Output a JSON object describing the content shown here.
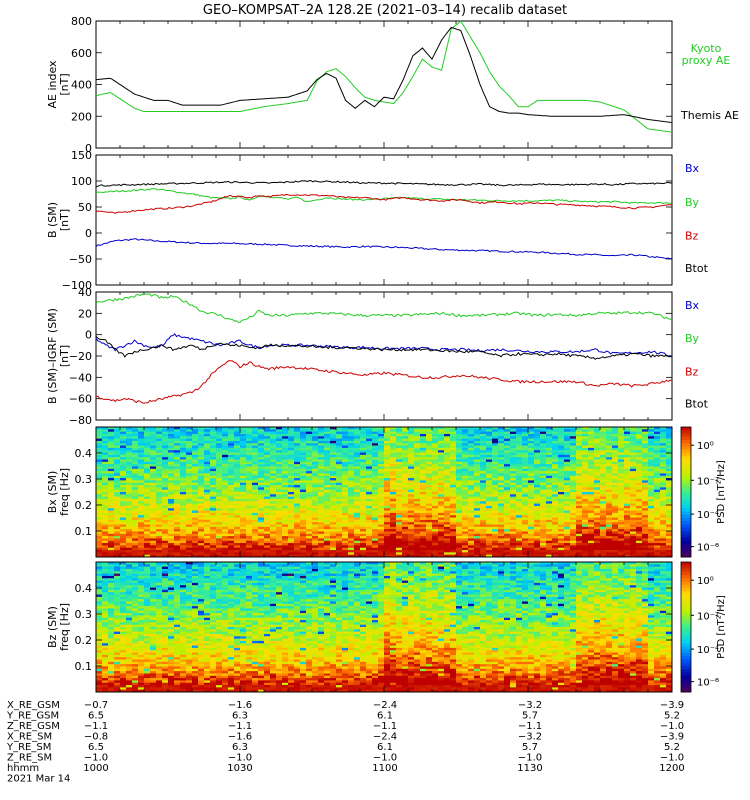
{
  "chart_data": [
    {
      "type": "line",
      "title": "GEO–KOMPSAT–2A 128.2E (2021–03–14) recalib dataset",
      "ylabel": "AE index\n[nT]",
      "ylim": [
        0,
        800
      ],
      "yticks": [
        0,
        200,
        400,
        600,
        800
      ],
      "xlim": [
        0,
        120
      ],
      "series": [
        {
          "name": "Kyoto proxy AE",
          "color": "#22cc22",
          "x": [
            0,
            3,
            6,
            8,
            10,
            12,
            15,
            18,
            22,
            26,
            30,
            35,
            40,
            44,
            46,
            48,
            50,
            52,
            54,
            56,
            58,
            60,
            62,
            64,
            66,
            68,
            70,
            72,
            74,
            76,
            78,
            80,
            82,
            84,
            86,
            88,
            90,
            92,
            95,
            98,
            100,
            102,
            105,
            110,
            115,
            120
          ],
          "values": [
            330,
            350,
            290,
            250,
            230,
            230,
            230,
            230,
            230,
            230,
            230,
            260,
            280,
            300,
            420,
            480,
            500,
            450,
            380,
            320,
            300,
            290,
            280,
            350,
            450,
            560,
            510,
            490,
            750,
            800,
            700,
            600,
            480,
            390,
            330,
            260,
            260,
            300,
            300,
            300,
            300,
            300,
            290,
            240,
            120,
            100
          ]
        },
        {
          "name": "Themis AE",
          "color": "#000000",
          "x": [
            0,
            3,
            6,
            8,
            10,
            12,
            15,
            18,
            22,
            26,
            30,
            35,
            40,
            44,
            46,
            48,
            50,
            52,
            54,
            56,
            58,
            60,
            62,
            64,
            66,
            68,
            70,
            72,
            74,
            76,
            78,
            80,
            82,
            84,
            86,
            88,
            90,
            95,
            100,
            105,
            110,
            115,
            120
          ],
          "values": [
            430,
            440,
            380,
            340,
            320,
            300,
            300,
            270,
            270,
            270,
            300,
            310,
            320,
            360,
            430,
            470,
            440,
            300,
            250,
            300,
            260,
            320,
            310,
            430,
            580,
            630,
            560,
            680,
            760,
            740,
            580,
            400,
            260,
            230,
            220,
            220,
            210,
            200,
            200,
            200,
            210,
            180,
            160
          ]
        }
      ]
    },
    {
      "type": "line",
      "ylabel": "B (SM)\n[nT]",
      "ylim": [
        -100,
        150
      ],
      "yticks": [
        -100,
        -50,
        0,
        50,
        100,
        150
      ],
      "xlim": [
        0,
        120
      ],
      "series": [
        {
          "name": "Bx",
          "color": "#0000cc",
          "x": [
            0,
            4,
            8,
            12,
            16,
            20,
            24,
            28,
            32,
            36,
            40,
            44,
            48,
            52,
            56,
            60,
            64,
            68,
            72,
            76,
            80,
            84,
            88,
            92,
            96,
            100,
            104,
            108,
            112,
            116,
            120
          ],
          "values": [
            -25,
            -15,
            -12,
            -15,
            -17,
            -19,
            -20,
            -20,
            -21,
            -22,
            -24,
            -25,
            -26,
            -27,
            -26,
            -27,
            -28,
            -30,
            -32,
            -33,
            -34,
            -35,
            -36,
            -37,
            -39,
            -41,
            -42,
            -44,
            -42,
            -46,
            -50
          ]
        },
        {
          "name": "By",
          "color": "#22cc22",
          "x": [
            0,
            4,
            8,
            12,
            16,
            20,
            24,
            28,
            30,
            32,
            34,
            38,
            40,
            42,
            44,
            48,
            52,
            56,
            60,
            64,
            68,
            72,
            76,
            80,
            84,
            88,
            92,
            96,
            100,
            104,
            108,
            112,
            116,
            120
          ],
          "values": [
            78,
            80,
            82,
            85,
            80,
            75,
            68,
            66,
            70,
            62,
            72,
            68,
            65,
            68,
            60,
            68,
            65,
            64,
            66,
            68,
            66,
            65,
            64,
            63,
            62,
            62,
            62,
            63,
            61,
            60,
            60,
            58,
            58,
            58
          ]
        },
        {
          "name": "Bz",
          "color": "#cc0000",
          "x": [
            0,
            4,
            8,
            12,
            16,
            20,
            24,
            28,
            30,
            32,
            34,
            36,
            40,
            44,
            48,
            52,
            56,
            60,
            64,
            68,
            72,
            76,
            80,
            84,
            88,
            92,
            96,
            100,
            104,
            108,
            112,
            116,
            120
          ],
          "values": [
            43,
            38,
            43,
            46,
            48,
            52,
            60,
            72,
            70,
            68,
            72,
            70,
            74,
            73,
            72,
            68,
            68,
            64,
            68,
            64,
            62,
            64,
            58,
            60,
            56,
            58,
            55,
            54,
            52,
            50,
            48,
            50,
            55
          ]
        },
        {
          "name": "Btot",
          "color": "#000000",
          "x": [
            0,
            4,
            8,
            12,
            16,
            20,
            24,
            28,
            32,
            36,
            40,
            44,
            48,
            52,
            56,
            60,
            64,
            68,
            72,
            76,
            80,
            84,
            88,
            92,
            96,
            100,
            104,
            108,
            112,
            116,
            120
          ],
          "values": [
            91,
            92,
            93,
            94,
            95,
            96,
            97,
            98,
            97,
            96,
            98,
            100,
            99,
            98,
            96,
            96,
            95,
            94,
            93,
            93,
            94,
            92,
            92,
            94,
            93,
            93,
            94,
            93,
            95,
            95,
            96
          ]
        }
      ]
    },
    {
      "type": "line",
      "ylabel": "B (SM)–IGRF (SM)\n[nT]",
      "ylim": [
        -80,
        40
      ],
      "yticks": [
        -80,
        -60,
        -40,
        -20,
        0,
        20,
        40
      ],
      "xlim": [
        0,
        120
      ],
      "series": [
        {
          "name": "Bx",
          "color": "#0000cc",
          "x": [
            0,
            2,
            4,
            6,
            8,
            10,
            12,
            14,
            16,
            18,
            20,
            22,
            24,
            26,
            28,
            30,
            32,
            34,
            36,
            40,
            44,
            48,
            52,
            56,
            60,
            64,
            68,
            72,
            76,
            80,
            84,
            88,
            92,
            96,
            100,
            104,
            108,
            112,
            116,
            120
          ],
          "values": [
            -4,
            -10,
            -14,
            -10,
            -6,
            -10,
            -12,
            -10,
            0,
            -2,
            -4,
            -6,
            -8,
            -10,
            -8,
            -6,
            -10,
            -12,
            -10,
            -10,
            -10,
            -11,
            -12,
            -12,
            -13,
            -13,
            -13,
            -14,
            -14,
            -15,
            -14,
            -15,
            -16,
            -16,
            -16,
            -14,
            -18,
            -17,
            -16,
            -20
          ]
        },
        {
          "name": "By",
          "color": "#22cc22",
          "x": [
            0,
            2,
            4,
            6,
            8,
            10,
            12,
            14,
            16,
            18,
            20,
            22,
            24,
            26,
            28,
            30,
            32,
            34,
            36,
            40,
            44,
            48,
            52,
            56,
            60,
            64,
            68,
            72,
            76,
            80,
            84,
            88,
            92,
            96,
            100,
            104,
            108,
            112,
            116,
            120
          ],
          "values": [
            30,
            32,
            33,
            34,
            36,
            38,
            37,
            34,
            36,
            32,
            28,
            22,
            20,
            18,
            14,
            12,
            16,
            22,
            18,
            18,
            20,
            20,
            19,
            18,
            18,
            18,
            19,
            20,
            18,
            18,
            19,
            20,
            18,
            19,
            18,
            20,
            20,
            21,
            20,
            14
          ]
        },
        {
          "name": "Bz",
          "color": "#cc0000",
          "x": [
            0,
            2,
            4,
            6,
            8,
            10,
            12,
            14,
            16,
            18,
            20,
            22,
            24,
            26,
            28,
            30,
            32,
            34,
            36,
            40,
            44,
            48,
            52,
            56,
            60,
            64,
            68,
            72,
            76,
            80,
            84,
            88,
            92,
            96,
            100,
            104,
            108,
            112,
            116,
            120
          ],
          "values": [
            -58,
            -60,
            -62,
            -60,
            -62,
            -64,
            -62,
            -60,
            -58,
            -56,
            -54,
            -48,
            -38,
            -30,
            -24,
            -30,
            -26,
            -30,
            -32,
            -30,
            -32,
            -34,
            -36,
            -38,
            -36,
            -38,
            -40,
            -40,
            -38,
            -40,
            -42,
            -44,
            -44,
            -44,
            -44,
            -48,
            -46,
            -48,
            -46,
            -42
          ]
        },
        {
          "name": "Btot",
          "color": "#000000",
          "x": [
            0,
            2,
            4,
            6,
            8,
            10,
            12,
            14,
            16,
            18,
            20,
            22,
            24,
            26,
            28,
            30,
            32,
            34,
            36,
            40,
            44,
            48,
            52,
            56,
            60,
            64,
            68,
            72,
            76,
            80,
            84,
            88,
            92,
            96,
            100,
            104,
            108,
            112,
            116,
            120
          ],
          "values": [
            -2,
            -6,
            -14,
            -20,
            -16,
            -14,
            -12,
            -10,
            -14,
            -12,
            -10,
            -14,
            -10,
            -8,
            -10,
            -10,
            -12,
            -12,
            -10,
            -10,
            -11,
            -12,
            -12,
            -13,
            -14,
            -14,
            -14,
            -15,
            -16,
            -16,
            -20,
            -18,
            -19,
            -18,
            -20,
            -22,
            -20,
            -18,
            -20,
            -20
          ]
        }
      ]
    },
    {
      "type": "heatmap",
      "ylabel": "Bx (SM)\nfreq [Hz]",
      "ylim": [
        0,
        0.5
      ],
      "yticks": [
        0.1,
        0.2,
        0.3,
        0.4
      ],
      "xlim": [
        0,
        120
      ],
      "colorbar": {
        "label": "PSD [nT²/Hz]",
        "ticks": [
          "10⁰",
          "10⁻²",
          "10⁻⁴",
          "10⁻⁶"
        ],
        "range_exp": [
          -7,
          1
        ]
      }
    },
    {
      "type": "heatmap",
      "ylabel": "Bz (SM)\nfreq [Hz]",
      "ylim": [
        0,
        0.5
      ],
      "yticks": [
        0.1,
        0.2,
        0.3,
        0.4
      ],
      "xlim": [
        0,
        120
      ],
      "colorbar": {
        "label": "PSD [nT²/Hz]",
        "ticks": [
          "10⁰",
          "10⁻²",
          "10⁻⁴",
          "10⁻⁶"
        ],
        "range_exp": [
          -7,
          1
        ]
      }
    }
  ],
  "footer": {
    "labels": [
      "X_RE_GSM",
      "Y_RE_GSM",
      "Z_RE_GSM",
      "X_RE_SM",
      "Y_RE_SM",
      "Z_RE_SM",
      "hhmm",
      "2021 Mar 14"
    ],
    "columns": [
      [
        "-0.7",
        "6.5",
        "-1.1",
        "-0.8",
        "6.5",
        "-1.0",
        "1000"
      ],
      [
        "-1.6",
        "6.3",
        "-1.1",
        "-1.6",
        "6.3",
        "-1.0",
        "1030"
      ],
      [
        "-2.4",
        "6.1",
        "-1.1",
        "-2.4",
        "6.1",
        "-1.0",
        "1100"
      ],
      [
        "-3.2",
        "5.7",
        "-1.1",
        "-3.2",
        "5.7",
        "-1.0",
        "1130"
      ],
      [
        "-3.9",
        "5.2",
        "-1.0",
        "-3.9",
        "5.2",
        "-1.0",
        "1200"
      ]
    ]
  }
}
